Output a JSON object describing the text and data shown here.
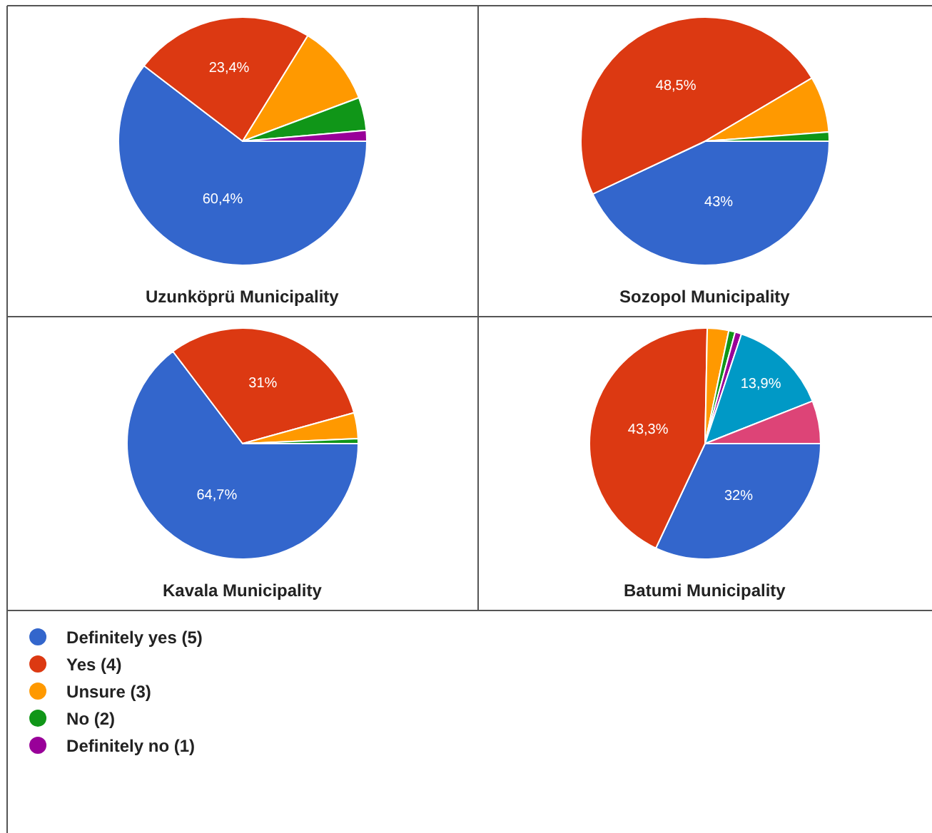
{
  "chart_data": [
    {
      "type": "pie",
      "title": "Uzunköprü Municipality",
      "categories": [
        "Definitely yes (5)",
        "Yes (4)",
        "Unsure (3)",
        "No (2)",
        "Definitely no (1)"
      ],
      "values": [
        60.4,
        23.4,
        10.5,
        4.3,
        1.4
      ],
      "colors": [
        "#3366cc",
        "#dc3912",
        "#ff9900",
        "#109618",
        "#990099"
      ],
      "value_labels": [
        "60,4%",
        "23,4%",
        null,
        null,
        null
      ],
      "legend": "bottom"
    },
    {
      "type": "pie",
      "title": "Sozopol Municipality",
      "categories": [
        null,
        null,
        null,
        null
      ],
      "values": [
        43,
        48.5,
        7.3,
        1.2
      ],
      "colors": [
        "#3366cc",
        "#dc3912",
        "#ff9900",
        "#109618"
      ],
      "value_labels": [
        "43%",
        "48,5%",
        null,
        null
      ]
    },
    {
      "type": "pie",
      "title": "Kavala Municipality",
      "categories": [
        null,
        null,
        null,
        null
      ],
      "values": [
        64.7,
        31,
        3.6,
        0.7
      ],
      "colors": [
        "#3366cc",
        "#dc3912",
        "#ff9900",
        "#109618"
      ],
      "value_labels": [
        "64,7%",
        "31%",
        null,
        null
      ]
    },
    {
      "type": "pie",
      "title": "Batumi Municipality",
      "categories": [
        null,
        null,
        null,
        null,
        null,
        null,
        null
      ],
      "values": [
        32,
        43.3,
        3,
        0.9,
        0.9,
        13.9,
        6
      ],
      "colors": [
        "#3366cc",
        "#dc3912",
        "#ff9900",
        "#109618",
        "#990099",
        "#0099c6",
        "#dd4477"
      ],
      "value_labels": [
        "32%",
        "43,3%",
        null,
        null,
        null,
        "13,9%",
        null
      ]
    }
  ]
}
